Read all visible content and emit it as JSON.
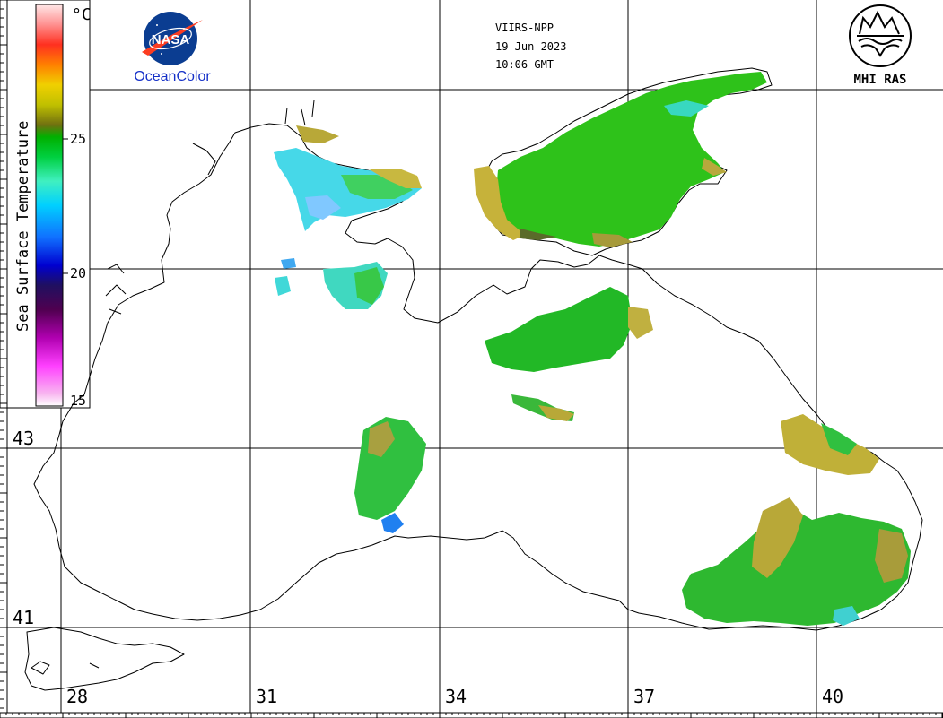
{
  "header": {
    "satellite": "VIIRS-NPP",
    "date": "19 Jun 2023",
    "time": "10:06 GMT"
  },
  "logos": {
    "nasa_text": "NASA",
    "oceancolor_text": "OceanColor",
    "mhi_text": "MHI RAS"
  },
  "colorbar": {
    "title": "Sea Surface Temperature",
    "unit": "°C",
    "ticks": [
      "25",
      "20",
      "15"
    ],
    "min": 15,
    "max": 30
  },
  "grid": {
    "lon_labels": [
      "28",
      "31",
      "34",
      "37",
      "40"
    ],
    "lat_labels": [
      "43",
      "41"
    ]
  },
  "colors": {
    "coastline": "#000000",
    "grid": "#000000",
    "nasa_blue": "#0b3d91",
    "nasa_red": "#fc3d21",
    "oceancolor_blue": "#1530c8"
  }
}
